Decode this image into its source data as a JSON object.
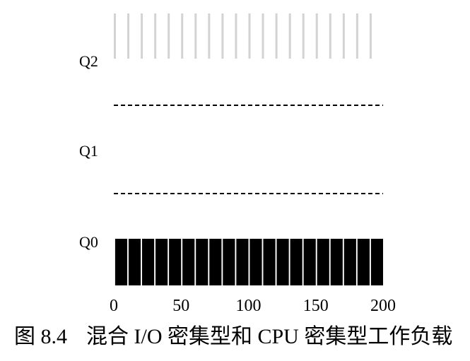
{
  "chart_data": {
    "type": "timeline",
    "queues": [
      "Q2",
      "Q1",
      "Q0"
    ],
    "x_ticks": [
      0,
      50,
      100,
      150,
      200
    ],
    "xlim": [
      0,
      200
    ],
    "q2_io_job_runs": [
      {
        "start": 0,
        "end": 1
      },
      {
        "start": 10,
        "end": 11
      },
      {
        "start": 20,
        "end": 21
      },
      {
        "start": 30,
        "end": 31
      },
      {
        "start": 40,
        "end": 41
      },
      {
        "start": 50,
        "end": 51
      },
      {
        "start": 60,
        "end": 61
      },
      {
        "start": 70,
        "end": 71
      },
      {
        "start": 80,
        "end": 81
      },
      {
        "start": 90,
        "end": 91
      },
      {
        "start": 100,
        "end": 101
      },
      {
        "start": 110,
        "end": 111
      },
      {
        "start": 120,
        "end": 121
      },
      {
        "start": 130,
        "end": 131
      },
      {
        "start": 140,
        "end": 141
      },
      {
        "start": 150,
        "end": 151
      },
      {
        "start": 160,
        "end": 161
      },
      {
        "start": 170,
        "end": 171
      },
      {
        "start": 180,
        "end": 181
      },
      {
        "start": 190,
        "end": 191
      }
    ],
    "q0_cpu_job_runs": [
      {
        "start": 1,
        "end": 10
      },
      {
        "start": 11,
        "end": 20
      },
      {
        "start": 21,
        "end": 30
      },
      {
        "start": 31,
        "end": 40
      },
      {
        "start": 41,
        "end": 50
      },
      {
        "start": 51,
        "end": 60
      },
      {
        "start": 61,
        "end": 70
      },
      {
        "start": 71,
        "end": 80
      },
      {
        "start": 81,
        "end": 90
      },
      {
        "start": 91,
        "end": 100
      },
      {
        "start": 101,
        "end": 110
      },
      {
        "start": 111,
        "end": 120
      },
      {
        "start": 121,
        "end": 130
      },
      {
        "start": 131,
        "end": 140
      },
      {
        "start": 141,
        "end": 150
      },
      {
        "start": 151,
        "end": 160
      },
      {
        "start": 161,
        "end": 170
      },
      {
        "start": 171,
        "end": 180
      },
      {
        "start": 181,
        "end": 190
      },
      {
        "start": 191,
        "end": 200
      }
    ],
    "colors": {
      "io_job": "#d3d3d3",
      "cpu_job": "#000000",
      "divider": "#000000"
    }
  },
  "caption": {
    "number": "图 8.4",
    "text": "混合 I/O 密集型和 CPU 密集型工作负载"
  }
}
